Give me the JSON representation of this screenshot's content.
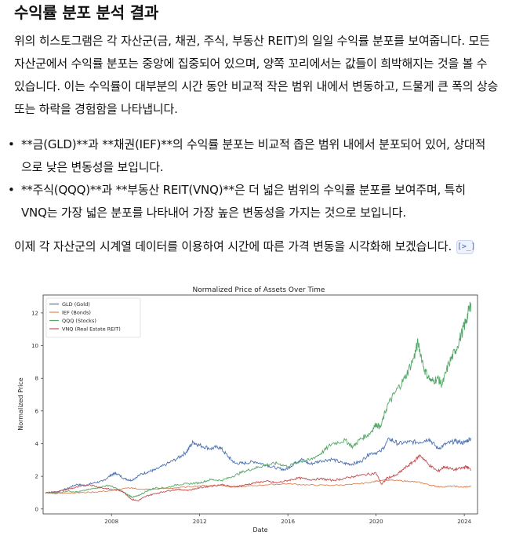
{
  "heading": "수익률 분포 분석 결과",
  "intro": "위의 히스토그램은 각 자산군(금, 채권, 주식, 부동산 REIT)의 일일 수익률 분포를 보여줍니다. 모든 자산군에서 수익률 분포는 중앙에 집중되어 있으며, 양쪽 꼬리에서는 값들이 희박해지는 것을 볼 수 있습니다. 이는 수익률이 대부분의 시간 동안 비교적 작은 범위 내에서 변동하고, 드물게 큰 폭의 상승 또는 하락을 경험함을 나타냅니다.",
  "bullets": [
    "**금(GLD)**과 **채권(IEF)**의 수익률 분포는 비교적 좁은 범위 내에서 분포되어 있어, 상대적으로 낮은 변동성을 보입니다.",
    "**주식(QQQ)**과 **부동산 REIT(VNQ)**은 더 넓은 범위의 수익률 분포를 보여주며, 특히 VNQ는 가장 넓은 분포를 나타내어 가장 높은 변동성을 가지는 것으로 보입니다."
  ],
  "outro": "이제 각 자산군의 시계열 데이터를 이용하여 시간에 따른 가격 변동을 시각화해 보겠습니다.",
  "cite_icon": "code-output-icon",
  "cite_glyph": "[>_]",
  "chart_data": {
    "type": "line",
    "title": "Normalized Price of Assets Over Time",
    "xlabel": "Date",
    "ylabel": "Normalized Price",
    "xlim": [
      2004.9,
      2024.6
    ],
    "ylim": [
      -0.3,
      13.1
    ],
    "xticks": [
      2008,
      2012,
      2016,
      2020,
      2024
    ],
    "yticks": [
      0,
      2,
      4,
      6,
      8,
      10,
      12
    ],
    "grid": false,
    "legend_position": "top-left",
    "series": [
      {
        "name": "GLD (Gold)",
        "color": "#4c72b0",
        "x": [
          2005.0,
          2005.5,
          2006.0,
          2006.4,
          2006.8,
          2007.2,
          2007.6,
          2008.0,
          2008.2,
          2008.6,
          2008.9,
          2009.3,
          2009.7,
          2010.0,
          2010.5,
          2011.0,
          2011.4,
          2011.7,
          2012.0,
          2012.5,
          2012.9,
          2013.3,
          2013.6,
          2014.0,
          2014.5,
          2015.0,
          2015.5,
          2015.9,
          2016.3,
          2016.6,
          2017.0,
          2017.5,
          2018.0,
          2018.5,
          2018.9,
          2019.3,
          2019.7,
          2020.2,
          2020.6,
          2021.0,
          2021.5,
          2022.0,
          2022.4,
          2022.8,
          2023.2,
          2023.6,
          2024.0,
          2024.3
        ],
        "y": [
          1.0,
          1.05,
          1.25,
          1.5,
          1.45,
          1.6,
          1.7,
          2.1,
          2.2,
          1.85,
          1.75,
          2.1,
          2.3,
          2.4,
          2.75,
          3.1,
          3.5,
          4.1,
          3.9,
          3.7,
          3.8,
          3.2,
          2.8,
          2.8,
          2.9,
          2.7,
          2.5,
          2.4,
          2.8,
          3.05,
          2.75,
          2.95,
          3.05,
          2.8,
          2.75,
          2.9,
          3.4,
          3.5,
          4.3,
          4.0,
          4.1,
          4.1,
          4.3,
          3.7,
          4.0,
          4.15,
          4.05,
          4.35
        ]
      },
      {
        "name": "IEF (Bonds)",
        "color": "#dd8452",
        "x": [
          2005.0,
          2006.0,
          2007.0,
          2008.0,
          2008.9,
          2009.3,
          2010.0,
          2011.0,
          2012.0,
          2013.0,
          2013.5,
          2014.0,
          2015.0,
          2016.0,
          2016.9,
          2018.0,
          2018.9,
          2019.7,
          2020.3,
          2020.8,
          2021.5,
          2022.0,
          2022.5,
          2022.9,
          2023.5,
          2023.9,
          2024.3
        ],
        "y": [
          1.0,
          0.98,
          1.02,
          1.12,
          1.3,
          1.2,
          1.22,
          1.3,
          1.42,
          1.45,
          1.35,
          1.38,
          1.48,
          1.55,
          1.47,
          1.45,
          1.5,
          1.62,
          1.78,
          1.75,
          1.7,
          1.62,
          1.45,
          1.35,
          1.4,
          1.33,
          1.38
        ]
      },
      {
        "name": "QQQ (Stocks)",
        "color": "#55a868",
        "x": [
          2005.0,
          2005.5,
          2006.0,
          2006.5,
          2007.0,
          2007.5,
          2007.9,
          2008.3,
          2008.7,
          2008.95,
          2009.2,
          2009.6,
          2010.0,
          2010.5,
          2011.0,
          2011.5,
          2012.0,
          2012.5,
          2013.0,
          2013.5,
          2014.0,
          2014.5,
          2015.0,
          2015.5,
          2016.0,
          2016.5,
          2017.0,
          2017.5,
          2018.0,
          2018.6,
          2018.95,
          2019.3,
          2019.7,
          2020.0,
          2020.2,
          2020.5,
          2020.9,
          2021.3,
          2021.7,
          2021.9,
          2022.2,
          2022.5,
          2022.8,
          2023.0,
          2023.3,
          2023.6,
          2023.9,
          2024.1,
          2024.3
        ],
        "y": [
          1.0,
          0.95,
          1.1,
          1.05,
          1.2,
          1.35,
          1.45,
          1.2,
          0.9,
          0.72,
          0.8,
          1.1,
          1.3,
          1.3,
          1.5,
          1.55,
          1.6,
          1.8,
          1.75,
          2.0,
          2.3,
          2.5,
          2.7,
          2.8,
          2.6,
          2.9,
          3.0,
          3.4,
          4.0,
          4.2,
          3.8,
          4.3,
          4.6,
          5.2,
          5.0,
          6.3,
          7.2,
          8.0,
          9.2,
          10.2,
          8.5,
          7.8,
          8.0,
          7.6,
          8.9,
          9.7,
          10.8,
          11.6,
          12.6
        ]
      },
      {
        "name": "VNQ (Real Estate REIT)",
        "color": "#c44e52",
        "x": [
          2005.0,
          2005.5,
          2006.0,
          2006.5,
          2007.0,
          2007.5,
          2008.0,
          2008.5,
          2008.9,
          2009.2,
          2009.6,
          2010.0,
          2010.5,
          2011.0,
          2011.5,
          2012.0,
          2012.5,
          2013.0,
          2013.5,
          2014.0,
          2014.5,
          2015.0,
          2015.5,
          2016.0,
          2016.5,
          2017.0,
          2017.5,
          2018.0,
          2018.5,
          2019.0,
          2019.5,
          2020.0,
          2020.25,
          2020.5,
          2020.9,
          2021.3,
          2021.7,
          2022.0,
          2022.4,
          2022.8,
          2023.1,
          2023.5,
          2023.9,
          2024.1,
          2024.3
        ],
        "y": [
          1.0,
          1.05,
          1.2,
          1.35,
          1.5,
          1.3,
          1.2,
          1.1,
          0.6,
          0.5,
          0.8,
          0.95,
          1.1,
          1.2,
          1.15,
          1.3,
          1.4,
          1.5,
          1.35,
          1.45,
          1.6,
          1.7,
          1.6,
          1.75,
          1.9,
          1.8,
          1.85,
          1.75,
          1.85,
          2.0,
          2.1,
          2.2,
          1.5,
          1.9,
          2.05,
          2.5,
          2.9,
          3.3,
          2.7,
          2.3,
          2.6,
          2.4,
          2.5,
          2.6,
          2.4
        ]
      }
    ]
  }
}
